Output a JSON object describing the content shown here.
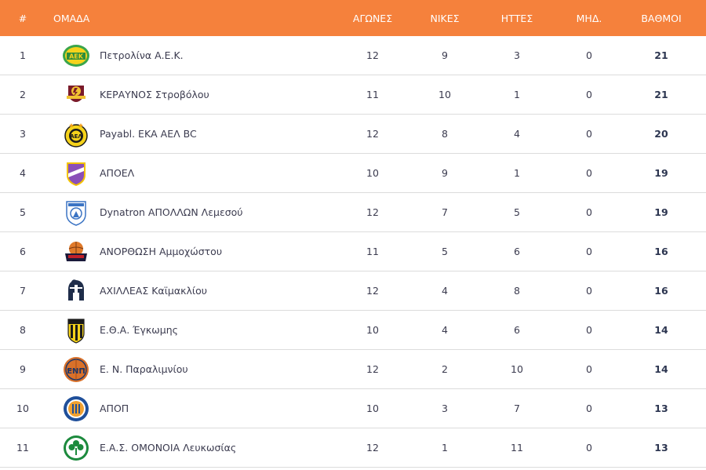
{
  "header": {
    "pos": "#",
    "team": "ΟΜΑΔΑ",
    "played": "ΑΓΩΝΕΣ",
    "wins": "ΝΙΚΕΣ",
    "losses": "ΗΤΤΕΣ",
    "draws": "ΜΗΔ.",
    "points": "ΒΑΘΜΟΙ"
  },
  "colors": {
    "header_bg": "#f5813c",
    "header_text": "#ffffff",
    "row_border": "#dcdcdc"
  },
  "rows": [
    {
      "pos": "1",
      "team": "Πετρολίνα Α.Ε.Κ.",
      "played": "12",
      "wins": "9",
      "losses": "3",
      "draws": "0",
      "points": "21",
      "logo": "aek-larnaca-logo"
    },
    {
      "pos": "2",
      "team": "ΚΕΡΑΥΝΟΣ Στροβόλου",
      "played": "11",
      "wins": "10",
      "losses": "1",
      "draws": "0",
      "points": "21",
      "logo": "keravnos-logo"
    },
    {
      "pos": "3",
      "team": "Payabl. ΕΚΑ ΑΕΛ BC",
      "played": "12",
      "wins": "8",
      "losses": "4",
      "draws": "0",
      "points": "20",
      "logo": "ael-logo"
    },
    {
      "pos": "4",
      "team": "ΑΠΟΕΛ",
      "played": "10",
      "wins": "9",
      "losses": "1",
      "draws": "0",
      "points": "19",
      "logo": "apoel-logo"
    },
    {
      "pos": "5",
      "team": "Dynatron ΑΠΟΛΛΩΝ Λεμεσού",
      "played": "12",
      "wins": "7",
      "losses": "5",
      "draws": "0",
      "points": "19",
      "logo": "apollon-logo"
    },
    {
      "pos": "6",
      "team": "ΑΝΟΡΘΩΣΗ Αμμοχώστου",
      "played": "11",
      "wins": "5",
      "losses": "6",
      "draws": "0",
      "points": "16",
      "logo": "anorthosis-logo"
    },
    {
      "pos": "7",
      "team": "ΑΧΙΛΛΕΑΣ Καϊμακλίου",
      "played": "12",
      "wins": "4",
      "losses": "8",
      "draws": "0",
      "points": "16",
      "logo": "achilleas-logo"
    },
    {
      "pos": "8",
      "team": "Ε.Θ.Α. Έγκωμης",
      "played": "10",
      "wins": "4",
      "losses": "6",
      "draws": "0",
      "points": "14",
      "logo": "etha-logo"
    },
    {
      "pos": "9",
      "team": "Ε. Ν. Παραλιμνίου",
      "played": "12",
      "wins": "2",
      "losses": "10",
      "draws": "0",
      "points": "14",
      "logo": "enp-logo"
    },
    {
      "pos": "10",
      "team": "ΑΠΟΠ",
      "played": "10",
      "wins": "3",
      "losses": "7",
      "draws": "0",
      "points": "13",
      "logo": "apop-logo"
    },
    {
      "pos": "11",
      "team": "Ε.Α.Σ. ΟΜΟΝΟΙΑ Λευκωσίας",
      "played": "12",
      "wins": "1",
      "losses": "11",
      "draws": "0",
      "points": "13",
      "logo": "omonoia-logo"
    }
  ]
}
